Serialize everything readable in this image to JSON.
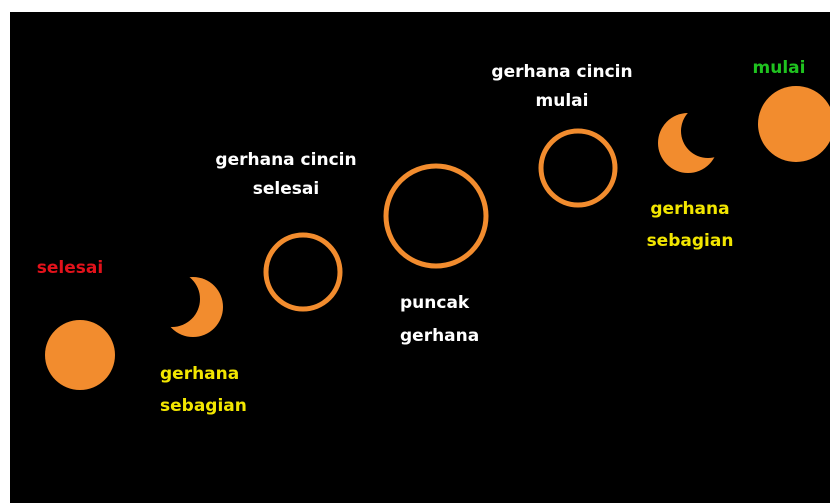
{
  "nodes": [
    {
      "lines": [
        "mulai"
      ]
    },
    {
      "lines": [
        "gerhana cincin",
        "mulai"
      ]
    },
    {
      "lines": [
        "gerhana",
        "sebagian"
      ]
    },
    {
      "lines": [
        "puncak",
        "gerhana"
      ]
    },
    {
      "lines": [
        "gerhana cincin",
        "selesai"
      ]
    },
    {
      "lines": [
        "gerhana",
        "sebagian"
      ]
    },
    {
      "lines": [
        "selesai"
      ]
    }
  ]
}
